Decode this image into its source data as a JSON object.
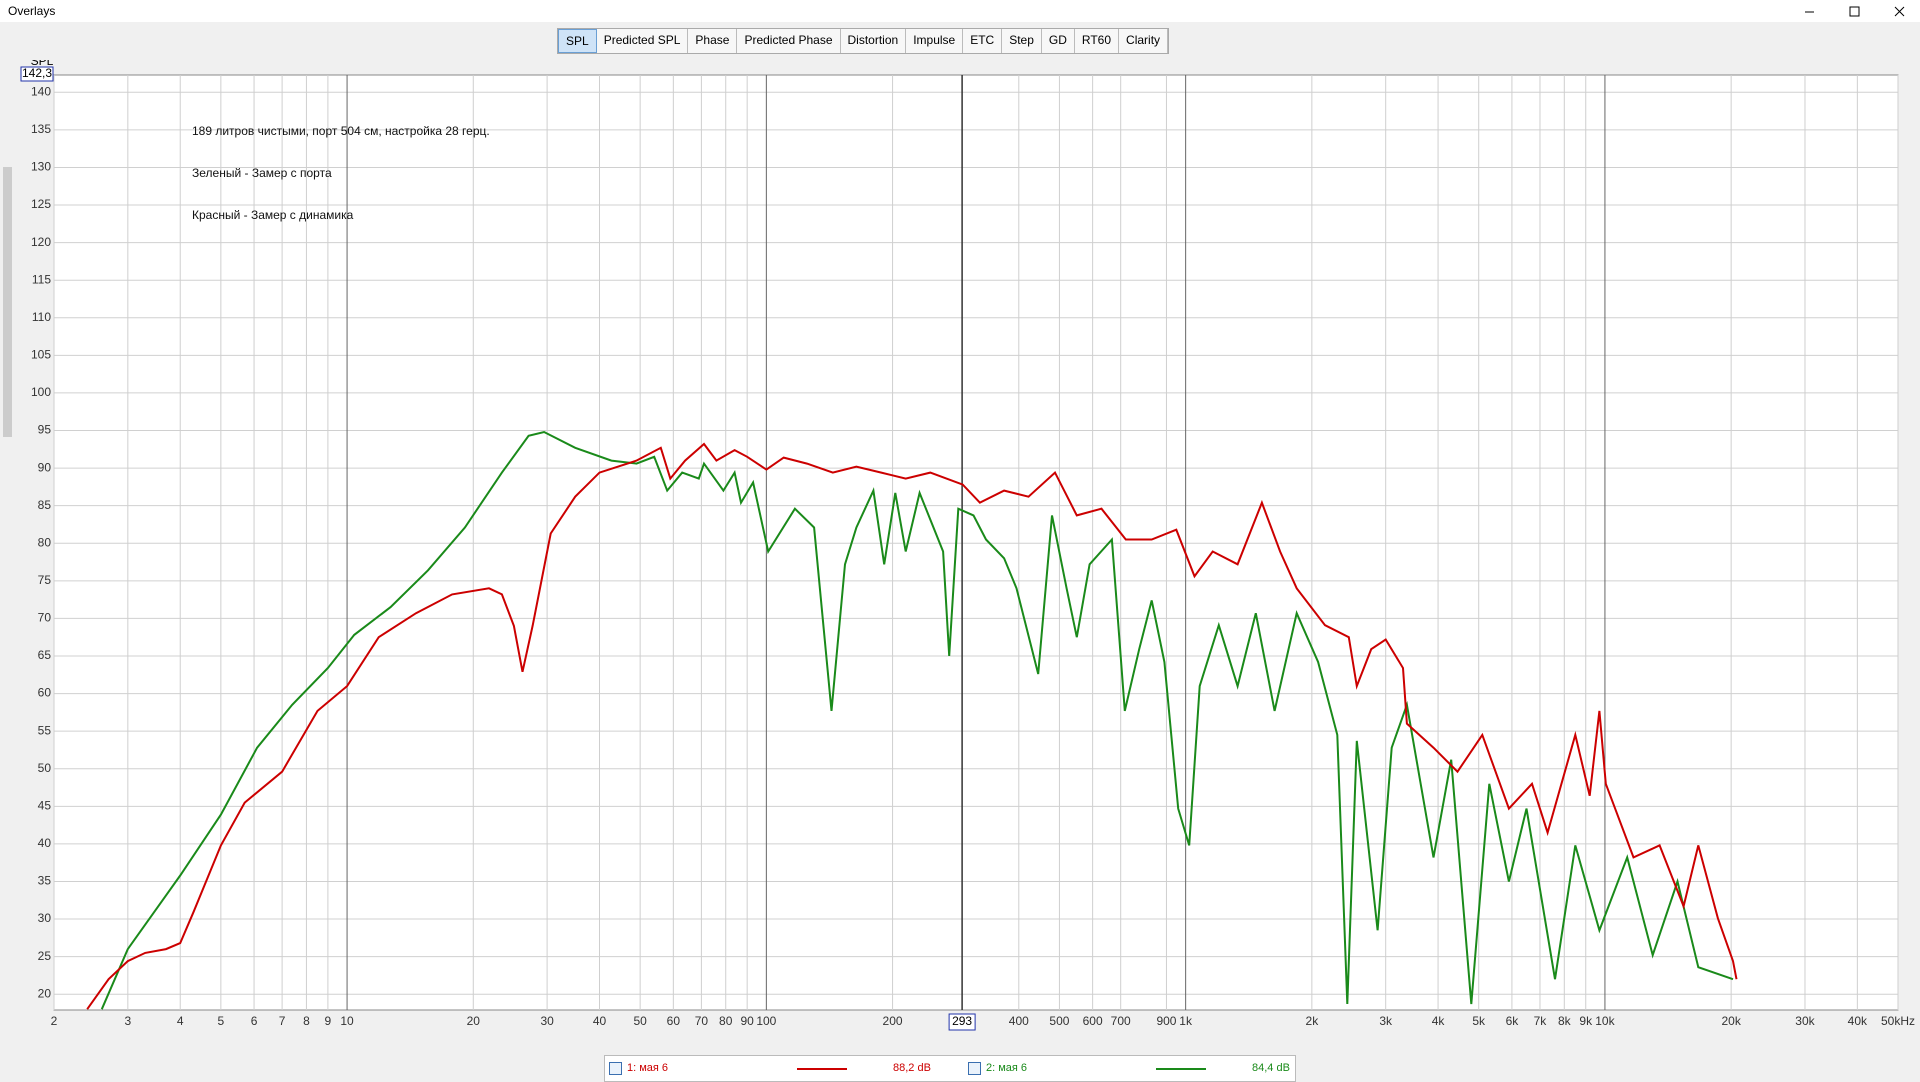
{
  "window_title": "Overlays",
  "tabs": [
    "SPL",
    "Predicted SPL",
    "Phase",
    "Predicted Phase",
    "Distortion",
    "Impulse",
    "ETC",
    "Step",
    "GD",
    "RT60",
    "Clarity"
  ],
  "selected_tab": 0,
  "chart_data": {
    "type": "line",
    "y_label": "SPL",
    "cursor_y_label": "142,3",
    "cursor_x": 293,
    "annotations": [
      "189 литров чистыми, порт 504 см, настройка 28 герц.",
      "Зеленый - Замер с порта",
      "Красный - Замер с динамика"
    ],
    "xlog": true,
    "grid": true,
    "xlim": [
      2,
      50000
    ],
    "ylim": [
      17.9,
      142.3
    ],
    "xticks": [
      2,
      3,
      4,
      5,
      6,
      7,
      8,
      9,
      10,
      20,
      30,
      40,
      50,
      60,
      70,
      80,
      90,
      100,
      200,
      400,
      500,
      600,
      700,
      900,
      {
        "value": 1000,
        "label": "1k"
      },
      {
        "value": 2000,
        "label": "2k"
      },
      {
        "value": 3000,
        "label": "3k"
      },
      {
        "value": 4000,
        "label": "4k"
      },
      {
        "value": 5000,
        "label": "5k"
      },
      {
        "value": 6000,
        "label": "6k"
      },
      {
        "value": 7000,
        "label": "7k"
      },
      {
        "value": 8000,
        "label": "8k"
      },
      {
        "value": 9000,
        "label": "9k"
      },
      {
        "value": 10000,
        "label": "10k"
      },
      {
        "value": 20000,
        "label": "20k"
      },
      {
        "value": 30000,
        "label": "30k"
      },
      {
        "value": 40000,
        "label": "40k"
      },
      {
        "value": 50000,
        "label": "50kHz"
      }
    ],
    "yticks": [
      20,
      25,
      30,
      35,
      40,
      45,
      50,
      55,
      60,
      65,
      70,
      75,
      80,
      85,
      90,
      95,
      100,
      105,
      110,
      115,
      120,
      125,
      130,
      135,
      140
    ],
    "series": [
      {
        "name": "1: мая 6",
        "color": "#cc0000",
        "legend_value": "88,2 dB",
        "x": [
          2.4,
          2.7,
          3.0,
          3.3,
          3.7,
          4.0,
          4.3,
          5.0,
          5.7,
          7.0,
          8.5,
          10,
          11.9,
          14.6,
          17.8,
          21.8,
          23.4,
          25,
          26.2,
          27.7,
          30.6,
          35,
          40,
          49,
          56,
          59,
          64,
          71,
          76,
          84,
          90,
          100,
          110,
          125,
          144,
          164,
          188,
          215,
          246,
          294,
          323,
          369,
          422,
          488,
          550,
          630,
          720,
          830,
          950,
          1050,
          1160,
          1330,
          1520,
          1680,
          1840,
          2150,
          2450,
          2560,
          2770,
          3000,
          3300,
          3370,
          3900,
          4450,
          5100,
          5900,
          6700,
          7300,
          8500,
          9200,
          9700,
          10050,
          11700,
          13500,
          15400,
          16700,
          18600,
          20200,
          20600
        ],
        "values": [
          18,
          22,
          24.4,
          25.5,
          26,
          26.8,
          30.9,
          39.8,
          45.5,
          49.6,
          57.7,
          61,
          67.5,
          70.7,
          73.2,
          74,
          73.2,
          69,
          62.9,
          69,
          81.3,
          86.2,
          89.4,
          91,
          92.7,
          88.6,
          91,
          93.2,
          91,
          92.4,
          91.5,
          89.8,
          91.4,
          90.6,
          89.4,
          90.2,
          89.4,
          88.6,
          89.4,
          87.8,
          85.4,
          87,
          86.2,
          89.4,
          83.7,
          84.6,
          80.5,
          80.5,
          81.8,
          75.6,
          78.9,
          77.2,
          85.4,
          78.9,
          74,
          69.1,
          67.5,
          61,
          65.9,
          67.2,
          63.4,
          56,
          52.8,
          49.6,
          54.5,
          44.7,
          48,
          41.5,
          54.5,
          46.4,
          57.7,
          48,
          38.2,
          39.8,
          31.7,
          39.8,
          30.1,
          24.4,
          22
        ]
      },
      {
        "name": "2: мая 6",
        "color": "#1a8a1a",
        "legend_value": "84,4 dB",
        "x": [
          2.6,
          3.0,
          4.0,
          5.0,
          6.1,
          7.4,
          9.0,
          10.4,
          12.7,
          15.6,
          19.1,
          23.4,
          27.1,
          29.5,
          35,
          42.7,
          49,
          54,
          58,
          63,
          69,
          71,
          79,
          84,
          87,
          93,
          101,
          117,
          130,
          143,
          154,
          164,
          180,
          191,
          203,
          215,
          232,
          264,
          273,
          287,
          312,
          334,
          369,
          395,
          445,
          480,
          520,
          550,
          590,
          667,
          716,
          775,
          830,
          890,
          960,
          1020,
          1080,
          1200,
          1330,
          1470,
          1630,
          1840,
          2070,
          2300,
          2430,
          2560,
          2870,
          3100,
          3370,
          3900,
          4300,
          4800,
          5300,
          5900,
          6500,
          7600,
          8500,
          9700,
          11300,
          13000,
          14900,
          16700,
          20200
        ],
        "values": [
          18,
          26,
          35.8,
          43.9,
          52.8,
          58.5,
          63.4,
          67.8,
          71.5,
          76.4,
          82.1,
          89.4,
          94.3,
          94.8,
          92.7,
          91,
          90.6,
          91.5,
          87,
          89.4,
          88.6,
          90.6,
          87,
          89.4,
          85.4,
          88.1,
          78.9,
          84.6,
          82.1,
          57.7,
          77.2,
          82.1,
          87,
          77.2,
          86.7,
          78.9,
          86.7,
          78.9,
          65,
          84.6,
          83.7,
          80.5,
          78,
          74,
          62.6,
          83.7,
          74,
          67.5,
          77.2,
          80.5,
          57.7,
          65.9,
          72.4,
          64.2,
          44.7,
          39.8,
          61,
          69.1,
          61,
          70.7,
          57.7,
          70.7,
          64.2,
          54.5,
          18.7,
          53.7,
          28.5,
          52.8,
          58.5,
          38.2,
          51.2,
          18.7,
          48,
          35,
          44.7,
          22,
          39.8,
          28.5,
          38.2,
          25.2,
          35,
          23.6,
          22
        ]
      }
    ]
  }
}
